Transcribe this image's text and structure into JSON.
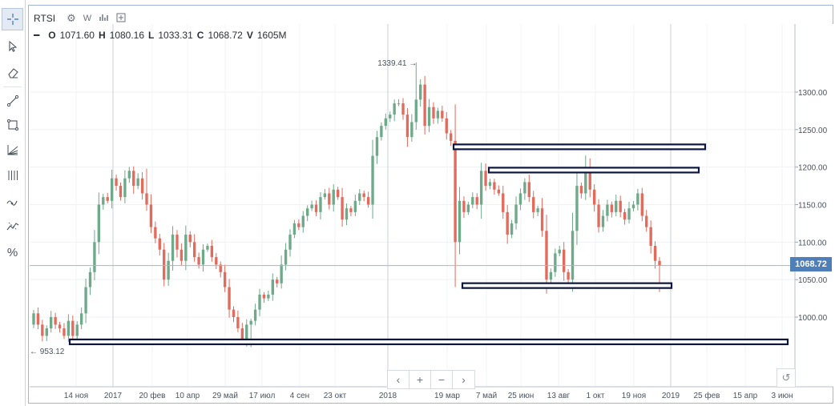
{
  "symbol": "RTSI",
  "interval": "W",
  "ohlc": {
    "o_label": "O",
    "o_value": "1071.60",
    "h_label": "H",
    "h_value": "1080.16",
    "l_label": "L",
    "l_value": "1033.31",
    "c_label": "C",
    "c_value": "1068.72",
    "v_label": "V",
    "v_value": "1605M"
  },
  "last_price": "1068.72",
  "toolbar_icons": [
    "crosshair-icon",
    "cursor-icon",
    "eraser-icon",
    "trend-line-icon",
    "rectangle-icon",
    "fib-fan-icon",
    "vertical-lines-icon",
    "indicator-icon",
    "pattern-icon",
    "percent-icon"
  ],
  "nav": {
    "back": "‹",
    "zoom_in": "+",
    "zoom_out": "−",
    "forward": "›"
  },
  "chart_data": {
    "type": "candlestick",
    "y_axis": {
      "ticks": [
        "1300.00",
        "1250.00",
        "1200.00",
        "1150.00",
        "1100.00",
        "1050.00",
        "1000.00"
      ],
      "range": [
        945,
        1365
      ]
    },
    "x_axis": {
      "ticks": [
        "14 ноя",
        "2017",
        "20 фев",
        "10 апр",
        "29 май",
        "17 июл",
        "4 сен",
        "23 окт",
        "2018",
        "19 мар",
        "7 май",
        "25 июн",
        "13 авг",
        "1 окт",
        "19 ноя",
        "2019",
        "25 фев",
        "15 апр",
        "3 июн"
      ]
    },
    "annotations": {
      "high_label": "1339.41",
      "low_label": "953.12"
    },
    "closes": [
      1005,
      990,
      975,
      985,
      1000,
      990,
      985,
      975,
      995,
      975,
      990,
      1005,
      1040,
      1060,
      1100,
      1150,
      1160,
      1155,
      1185,
      1175,
      1160,
      1185,
      1195,
      1175,
      1185,
      1165,
      1150,
      1120,
      1105,
      1090,
      1050,
      1075,
      1110,
      1090,
      1075,
      1110,
      1100,
      1080,
      1070,
      1090,
      1095,
      1080,
      1070,
      1060,
      1040,
      1010,
      1000,
      985,
      970,
      990,
      995,
      1010,
      1030,
      1025,
      1030,
      1050,
      1045,
      1070,
      1090,
      1110,
      1125,
      1120,
      1135,
      1145,
      1150,
      1140,
      1160,
      1165,
      1150,
      1170,
      1160,
      1130,
      1145,
      1140,
      1155,
      1165,
      1160,
      1150,
      1215,
      1240,
      1255,
      1265,
      1270,
      1285,
      1285,
      1270,
      1240,
      1260,
      1290,
      1310,
      1255,
      1280,
      1265,
      1275,
      1265,
      1245,
      1235,
      1100,
      1155,
      1140,
      1150,
      1160,
      1150,
      1195,
      1175,
      1180,
      1170,
      1165,
      1140,
      1110,
      1125,
      1150,
      1165,
      1180,
      1160,
      1140,
      1145,
      1115,
      1050,
      1060,
      1085,
      1090,
      1060,
      1050,
      1115,
      1175,
      1165,
      1200,
      1170,
      1150,
      1120,
      1135,
      1150,
      1140,
      1155,
      1140,
      1130,
      1145,
      1150,
      1165,
      1135,
      1120,
      1095,
      1075,
      1068.72
    ],
    "levels": [
      "1227",
      "1196",
      "1042",
      "967"
    ]
  }
}
